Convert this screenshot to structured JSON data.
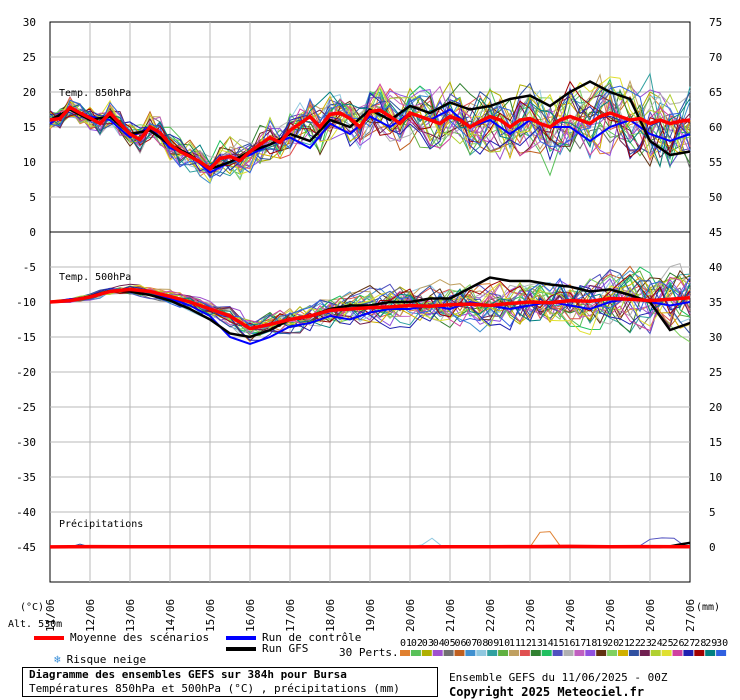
{
  "chart_data": {
    "type": "line",
    "title": "Diagramme des ensembles GEFS sur 384h pour Bursa",
    "subtitle": "Températures 850hPa et 500hPa (°C) , précipitations (mm)",
    "x_ticks": [
      "11/06",
      "12/06",
      "13/06",
      "14/06",
      "15/06",
      "16/06",
      "17/06",
      "18/06",
      "19/06",
      "20/06",
      "21/06",
      "22/06",
      "23/06",
      "24/06",
      "25/06",
      "26/06",
      "27/06"
    ],
    "x_range_days": [
      0,
      16
    ],
    "left_axis": {
      "ticks": [
        30,
        25,
        20,
        15,
        10,
        5,
        0,
        -5,
        -10,
        -15,
        -20,
        -25,
        -30,
        -35,
        -40,
        -45
      ],
      "unit": "(°C)"
    },
    "right_axis": {
      "ticks": [
        75,
        70,
        65,
        60,
        55,
        50,
        45,
        40,
        35,
        30,
        25,
        20,
        15,
        10,
        5,
        0
      ],
      "unit": "(mm)"
    },
    "grid": true,
    "panels": [
      {
        "name": "Temp. 850hPa",
        "mean_series": {
          "name": "Moyenne des scénarios",
          "x": [
            0,
            0.25,
            0.5,
            0.75,
            1,
            1.25,
            1.5,
            1.75,
            2,
            2.25,
            2.5,
            2.75,
            3,
            3.25,
            3.5,
            3.75,
            4,
            4.25,
            4.5,
            4.75,
            5,
            5.25,
            5.5,
            5.75,
            6,
            6.25,
            6.5,
            6.75,
            7,
            7.25,
            7.5,
            7.75,
            8,
            8.25,
            8.5,
            8.75,
            9,
            9.25,
            9.5,
            9.75,
            10,
            10.25,
            10.5,
            10.75,
            11,
            11.25,
            11.5,
            11.75,
            12,
            12.25,
            12.5,
            12.75,
            13,
            13.25,
            13.5,
            13.75,
            14,
            14.25,
            14.5,
            14.75,
            15,
            15.25,
            15.5,
            15.75,
            16
          ],
          "y": [
            16,
            16.2,
            17.8,
            17,
            16.3,
            15.5,
            17,
            15.5,
            14,
            13.2,
            15,
            14.2,
            12.5,
            11.5,
            10.8,
            10,
            9,
            10.5,
            10.8,
            10.2,
            11.5,
            12.5,
            13.5,
            12.8,
            14.5,
            15.5,
            16.5,
            15,
            16.8,
            17,
            16.2,
            15,
            17.2,
            17.4,
            16.5,
            15.5,
            17,
            16.5,
            16,
            15.5,
            16.5,
            16,
            15,
            15.8,
            16.5,
            16,
            15,
            16,
            16.2,
            15.5,
            15,
            16,
            16.5,
            16,
            15.5,
            16.5,
            17,
            16.5,
            16,
            16.2,
            15.5,
            16,
            15.5,
            15.8,
            16
          ]
        },
        "gfs_series": {
          "name": "Run GFS",
          "x": [
            0,
            0.5,
            1,
            1.5,
            2,
            2.5,
            3,
            3.5,
            4,
            4.5,
            5,
            5.5,
            6,
            6.5,
            7,
            7.5,
            8,
            8.5,
            9,
            9.5,
            10,
            10.5,
            11,
            11.5,
            12,
            12.5,
            13,
            13.5,
            14,
            14.5,
            15,
            15.5,
            16
          ],
          "y": [
            16,
            17.5,
            16,
            16.5,
            14,
            14.5,
            12.5,
            11,
            9,
            10,
            11.5,
            12.5,
            14,
            13,
            16,
            15,
            17.5,
            16,
            18,
            17,
            18.5,
            17.5,
            18,
            19,
            19.5,
            18,
            20,
            21.5,
            20,
            19,
            13,
            11,
            11.5
          ]
        },
        "control_series": {
          "name": "Run de contrôle",
          "x": [
            0,
            0.5,
            1,
            1.5,
            2,
            2.5,
            3,
            3.5,
            4,
            4.5,
            5,
            5.5,
            6,
            6.5,
            7,
            7.5,
            8,
            8.5,
            9,
            9.5,
            10,
            10.5,
            11,
            11.5,
            12,
            12.5,
            13,
            13.5,
            14,
            14.5,
            15,
            15.5,
            16
          ],
          "y": [
            15.5,
            17.5,
            16.5,
            16,
            13.5,
            15,
            12,
            11,
            8.5,
            10,
            11,
            12.5,
            13.5,
            12,
            15.5,
            14,
            16.5,
            15,
            17,
            16,
            17.5,
            15,
            16,
            14,
            16,
            15,
            15,
            13,
            15,
            16,
            14,
            13,
            14
          ]
        }
      },
      {
        "name": "Temp. 500hPa",
        "mean_series": {
          "name": "Moyenne des scénarios",
          "x": [
            0,
            0.5,
            1,
            1.5,
            2,
            2.5,
            3,
            3.5,
            4,
            4.5,
            5,
            5.5,
            6,
            6.5,
            7,
            7.5,
            8,
            8.5,
            9,
            9.5,
            10,
            10.5,
            11,
            11.5,
            12,
            12.5,
            13,
            13.5,
            14,
            14.5,
            15,
            15.5,
            16
          ],
          "y": [
            -10,
            -9.8,
            -9.3,
            -8.5,
            -8.2,
            -8.5,
            -9.2,
            -10,
            -11,
            -12,
            -13.8,
            -13.2,
            -12.5,
            -12,
            -11.2,
            -11,
            -10.8,
            -10.7,
            -10.5,
            -10.6,
            -10.4,
            -10.3,
            -10.5,
            -10.2,
            -10,
            -10.1,
            -9.8,
            -9.9,
            -9.5,
            -9.6,
            -9.8,
            -9.6,
            -9.4
          ]
        },
        "gfs_series": {
          "name": "Run GFS",
          "x": [
            0,
            0.5,
            1,
            1.5,
            2,
            2.5,
            3,
            3.5,
            4,
            4.5,
            5,
            5.5,
            6,
            6.5,
            7,
            7.5,
            8,
            8.5,
            9,
            9.5,
            10,
            10.5,
            11,
            11.5,
            12,
            12.5,
            13,
            13.5,
            14,
            14.5,
            15,
            15.5,
            16
          ],
          "y": [
            -10,
            -9.8,
            -9.2,
            -8.4,
            -8.5,
            -9,
            -9.8,
            -11,
            -12.5,
            -14.5,
            -15,
            -14,
            -12.5,
            -12,
            -11,
            -10.5,
            -10.5,
            -10,
            -10,
            -9.5,
            -9.5,
            -8,
            -6.5,
            -7,
            -7,
            -7.5,
            -7.8,
            -8.5,
            -8.2,
            -9,
            -10,
            -14,
            -13
          ]
        },
        "control_series": {
          "name": "Run de contrôle",
          "x": [
            0,
            0.5,
            1,
            1.5,
            2,
            2.5,
            3,
            3.5,
            4,
            4.5,
            5,
            5.5,
            6,
            6.5,
            7,
            7.5,
            8,
            8.5,
            9,
            9.5,
            10,
            10.5,
            11,
            11.5,
            12,
            12.5,
            13,
            13.5,
            14,
            14.5,
            15,
            15.5,
            16
          ],
          "y": [
            -10,
            -9.6,
            -9.3,
            -8.4,
            -8.4,
            -9,
            -9.5,
            -10.5,
            -12,
            -15,
            -16,
            -15,
            -13.5,
            -13,
            -12,
            -12.5,
            -11.5,
            -11,
            -11,
            -10.5,
            -11,
            -10,
            -10.5,
            -11,
            -10.5,
            -10,
            -10.5,
            -11,
            -10,
            -9.5,
            -10,
            -10.5,
            -10
          ]
        }
      },
      {
        "name": "Précipitations",
        "unit": "mm",
        "mean_series": {
          "name": "Moyenne des scénarios",
          "x": [
            0,
            1,
            2,
            3,
            4,
            5,
            6,
            7,
            8,
            9,
            10,
            11,
            12,
            13,
            14,
            15,
            16
          ],
          "y": [
            0.1,
            0.3,
            0.2,
            0.2,
            0.2,
            0.2,
            0.1,
            0.1,
            0.1,
            0.1,
            0.2,
            0.2,
            0.3,
            0.4,
            0.2,
            0.3,
            0.2
          ]
        },
        "gfs_series": {
          "name": "Run GFS",
          "x": [
            0,
            2,
            4,
            6,
            8,
            10,
            12,
            13,
            14,
            14.5,
            15,
            15.25,
            15.5,
            15.75,
            16
          ],
          "y": [
            0,
            0,
            0,
            0,
            0,
            0,
            0,
            0,
            0,
            0,
            0,
            0,
            0.5,
            1.8,
            3
          ]
        },
        "control_series": {
          "name": "Run de contrôle",
          "x": [
            0,
            2,
            4,
            6,
            8,
            10,
            12,
            14,
            16
          ],
          "y": [
            0.2,
            0.1,
            0.1,
            0,
            0.1,
            0.1,
            0.2,
            0.1,
            0.2
          ]
        },
        "highlight_series": [
          {
            "x": [
              12,
              12.25,
              12.5,
              12.75,
              13
            ],
            "y": [
              0,
              10.5,
              11,
              1,
              0
            ]
          },
          {
            "x": [
              9,
              9.3,
              9.55,
              9.8,
              10.1
            ],
            "y": [
              0,
              1.5,
              6.3,
              0.5,
              0
            ]
          },
          {
            "x": [
              14.7,
              15,
              15.3,
              15.6,
              15.9
            ],
            "y": [
              0,
              5.5,
              6.5,
              6.3,
              0
            ]
          },
          {
            "x": [
              0.5,
              0.75,
              1
            ],
            "y": [
              0,
              2,
              0
            ]
          }
        ]
      }
    ]
  },
  "labels": {
    "panel_850": "Temp. 850hPa",
    "panel_500": "Temp. 500hPa",
    "panel_precip": "Précipitations",
    "left_unit": "(°C)",
    "right_unit": "(mm)",
    "alt": "Alt. 530m"
  },
  "legend": {
    "mean": "Moyenne des scénarios",
    "control": "Run de contrôle",
    "gfs": "Run GFS",
    "snow": "Risque neige",
    "perts_label": "30 Perts.",
    "perts": [
      "01",
      "02",
      "03",
      "04",
      "05",
      "06",
      "07",
      "08",
      "09",
      "10",
      "11",
      "12",
      "13",
      "14",
      "15",
      "16",
      "17",
      "18",
      "19",
      "20",
      "21",
      "22",
      "23",
      "24",
      "25",
      "26",
      "27",
      "28",
      "29",
      "30"
    ],
    "pert_colors": [
      "#e08030",
      "#58c058",
      "#b0b000",
      "#a050d0",
      "#707070",
      "#c06020",
      "#4090d0",
      "#90c8e0",
      "#30a0a0",
      "#60b040",
      "#c0a060",
      "#e05050",
      "#308030",
      "#20c060",
      "#5050c0",
      "#b0b0b0",
      "#c060c0",
      "#9050e0",
      "#603010",
      "#80d060",
      "#d0b000",
      "#3050a0",
      "#702050",
      "#b0d030",
      "#e0e030",
      "#d040a0",
      "#2020b0",
      "#a00000",
      "#008080",
      "#3060e0"
    ]
  },
  "colors": {
    "mean": "#ff0000",
    "control": "#0000ff",
    "gfs": "#000000",
    "grid": "#b8b8b8"
  },
  "footer": {
    "title": "Diagramme des ensembles GEFS sur 384h pour Bursa",
    "subtitle": "Températures 850hPa et 500hPa (°C) , précipitations (mm)",
    "run": "Ensemble GEFS du 11/06/2025 - 00Z",
    "copyright": "Copyright 2025 Meteociel.fr"
  }
}
